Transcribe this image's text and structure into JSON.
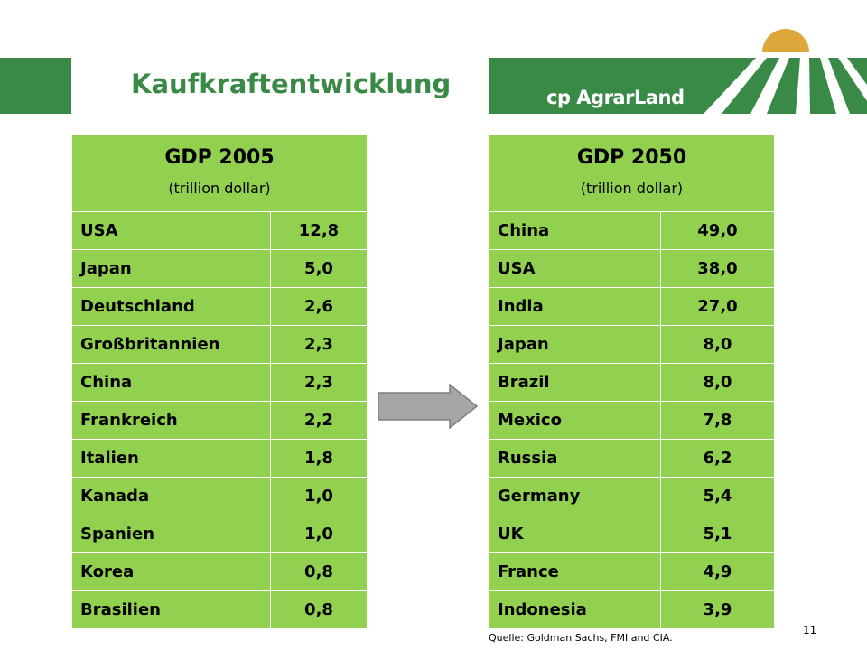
{
  "slide": {
    "title": "Kaufkraftentwicklung",
    "logo_text": "cp AgrarLand",
    "source": "Quelle: Goldman Sachs, FMI and CIA.",
    "page_number": "11",
    "colors": {
      "brand_green": "#3a8a47",
      "table_green": "#92d050",
      "sun_orange": "#dca83c",
      "arrow_gray": "#a6a6a6"
    },
    "arrow_icon": "right-arrow-icon"
  },
  "table_2005": {
    "title": "GDP 2005",
    "unit": "(trillion dollar)",
    "rows": [
      {
        "country": "USA",
        "value": "12,8"
      },
      {
        "country": "Japan",
        "value": "5,0"
      },
      {
        "country": "Deutschland",
        "value": "2,6"
      },
      {
        "country": "Großbritannien",
        "value": "2,3"
      },
      {
        "country": "China",
        "value": "2,3"
      },
      {
        "country": "Frankreich",
        "value": "2,2"
      },
      {
        "country": "Italien",
        "value": "1,8"
      },
      {
        "country": "Kanada",
        "value": "1,0"
      },
      {
        "country": "Spanien",
        "value": "1,0"
      },
      {
        "country": "Korea",
        "value": "0,8"
      },
      {
        "country": "Brasilien",
        "value": "0,8"
      }
    ]
  },
  "table_2050": {
    "title": "GDP 2050",
    "unit": "(trillion dollar)",
    "rows": [
      {
        "country": "China",
        "value": "49,0"
      },
      {
        "country": "USA",
        "value": "38,0"
      },
      {
        "country": "India",
        "value": "27,0"
      },
      {
        "country": "Japan",
        "value": "8,0"
      },
      {
        "country": "Brazil",
        "value": "8,0"
      },
      {
        "country": "Mexico",
        "value": "7,8"
      },
      {
        "country": "Russia",
        "value": "6,2"
      },
      {
        "country": "Germany",
        "value": "5,4"
      },
      {
        "country": "UK",
        "value": "5,1"
      },
      {
        "country": "France",
        "value": "4,9"
      },
      {
        "country": "Indonesia",
        "value": "3,9"
      }
    ]
  }
}
